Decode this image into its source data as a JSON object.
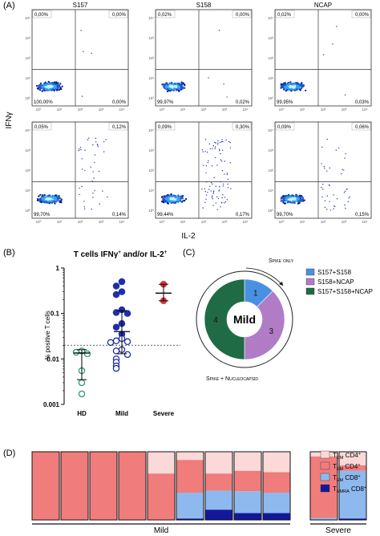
{
  "panels": {
    "a": "(A)",
    "b": "(B)",
    "c": "(C)",
    "d": "(D)"
  },
  "chart_data": [
    {
      "type": "scatter",
      "panel": "A",
      "xlabel": "IL-2",
      "ylabel": "IFNγ",
      "columns": [
        "S157",
        "S158",
        "NCAP"
      ],
      "tick_labels": [
        "10⁰",
        "10¹",
        "10²",
        "10³",
        "10⁴"
      ],
      "plots": [
        {
          "row": 0,
          "col": 0,
          "quadrants": {
            "ul": "0,00%",
            "ur": "0,00%",
            "ll": "100,00%",
            "lr": "0,00%"
          }
        },
        {
          "row": 0,
          "col": 1,
          "quadrants": {
            "ul": "0,02%",
            "ur": "0,00%",
            "ll": "99,97%",
            "lr": "0,02%"
          }
        },
        {
          "row": 0,
          "col": 2,
          "quadrants": {
            "ul": "0,02%",
            "ur": "0,00%",
            "ll": "99,95%",
            "lr": "0,03%"
          }
        },
        {
          "row": 1,
          "col": 0,
          "quadrants": {
            "ul": "0,05%",
            "ur": "0,12%",
            "ll": "99,70%",
            "lr": "0,14%"
          }
        },
        {
          "row": 1,
          "col": 1,
          "quadrants": {
            "ul": "0,09%",
            "ur": "0,30%",
            "ll": "99,44%",
            "lr": "0,17%"
          }
        },
        {
          "row": 1,
          "col": 2,
          "quadrants": {
            "ul": "0,09%",
            "ur": "0,06%",
            "ll": "99,70%",
            "lr": "0,15%"
          }
        }
      ]
    },
    {
      "type": "scatter",
      "panel": "B",
      "title_main": "T cells IFNγ",
      "title_sup1": "+",
      "title_mid": " and/or IL-2",
      "title_sup2": "+",
      "ylabel": "% positive T cells",
      "yscale": "log",
      "ylim": [
        0.001,
        1
      ],
      "yticks": [
        "1",
        "0.1",
        "0.01",
        "0.001"
      ],
      "categories": [
        "HD",
        "Mild",
        "Severe"
      ],
      "threshold": 0.02,
      "colors": {
        "HD": "#2e9a6e",
        "Mild": "#1f2fa8",
        "Severe": "#d63a3a"
      },
      "groups": [
        {
          "category": "HD",
          "filled": false,
          "values": [
            0.015,
            0.014,
            0.013,
            0.0055,
            0.003,
            0.0017
          ],
          "median": 0.0135,
          "iqr": [
            0.0035,
            0.016
          ]
        },
        {
          "category": "Mild",
          "filled": true,
          "values": [
            0.5,
            0.4,
            0.3,
            0.26,
            0.12,
            0.105,
            0.1,
            0.06,
            0.05,
            0.035
          ]
        },
        {
          "category": "Mild",
          "filled": false,
          "values": [
            0.028,
            0.025,
            0.024,
            0.023,
            0.016,
            0.015,
            0.0125,
            0.01,
            0.0085,
            0.007,
            0.0062
          ],
          "median": 0.04,
          "iqr": [
            0.013,
            0.115
          ]
        },
        {
          "category": "Severe",
          "filled": true,
          "values": [
            0.44,
            0.19
          ],
          "median": 0.28,
          "iqr": [
            0.19,
            0.44
          ]
        }
      ]
    },
    {
      "type": "pie",
      "panel": "C",
      "center_label": "Mild",
      "labels": [
        "S157+S158",
        "S158+NCAP",
        "S157+S158+NCAP"
      ],
      "values": [
        1,
        3,
        4
      ],
      "colors": [
        "#4a90e2",
        "#b07cc6",
        "#1f6b45"
      ],
      "annotation_top": "Spike only",
      "annotation_bottom": "Spike + Nucleocapsid"
    },
    {
      "type": "bar",
      "panel": "D",
      "stacked": true,
      "normalized": true,
      "group_labels": [
        "Mild",
        "Severe"
      ],
      "series": [
        {
          "name_main": "T",
          "name_sub": "CM",
          "name_rest": " CD4",
          "name_sup": "+",
          "color": "#fbd9d9",
          "values": [
            0,
            0,
            0,
            0,
            0.32,
            0.12,
            0.32,
            0.28,
            0.3,
            0.07,
            0.2
          ]
        },
        {
          "name_main": "T",
          "name_sub": "EM",
          "name_rest": " CD4",
          "name_sup": "+",
          "color": "#f17c7c",
          "values": [
            1,
            1,
            1,
            1,
            0.68,
            0.48,
            0.25,
            0.3,
            0.3,
            0.9,
            0.08
          ]
        },
        {
          "name_main": "T",
          "name_sub": "EM",
          "name_rest": " CD8",
          "name_sup": "+",
          "color": "#8db9ef",
          "values": [
            0,
            0,
            0,
            0,
            0,
            0.38,
            0.28,
            0.32,
            0.3,
            0.03,
            0.7
          ]
        },
        {
          "name_main": "T",
          "name_sub": "EMRA",
          "name_rest": " CD8",
          "name_sup": "+",
          "color": "#13189a",
          "values": [
            0,
            0,
            0,
            0,
            0,
            0.02,
            0.15,
            0.1,
            0.1,
            0,
            0.02
          ]
        }
      ],
      "group_of_bar": [
        "Mild",
        "Mild",
        "Mild",
        "Mild",
        "Mild",
        "Mild",
        "Mild",
        "Mild",
        "Mild",
        "Severe",
        "Severe"
      ]
    }
  ]
}
